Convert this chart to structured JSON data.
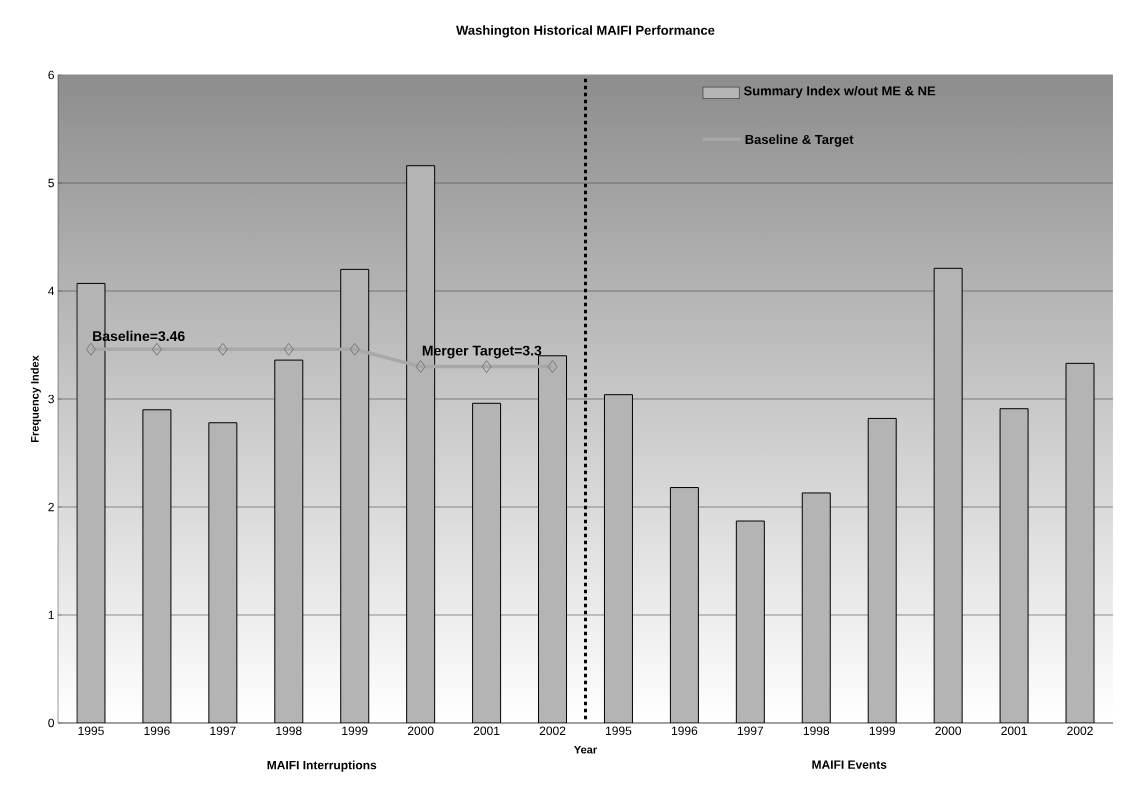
{
  "chart_data": {
    "type": "bar",
    "title": "Washington Historical MAIFI Performance",
    "xlabel": "Year",
    "ylabel": "Frequency Index",
    "categories": [
      "1995",
      "1996",
      "1997",
      "1998",
      "1999",
      "2000",
      "2001",
      "2002",
      "1995",
      "1996",
      "1997",
      "1998",
      "1999",
      "2000",
      "2001",
      "2002"
    ],
    "series": [
      {
        "name": "Summary Index w/out ME & NE",
        "color": "#b4b4b4",
        "values": [
          4.07,
          2.9,
          2.78,
          3.36,
          4.2,
          5.16,
          2.96,
          3.4,
          3.04,
          2.18,
          1.87,
          2.13,
          2.82,
          4.21,
          2.91,
          3.33
        ]
      },
      {
        "name": "Baseline & Target",
        "type": "line",
        "color": "#a8a8a8",
        "marker": "diamond",
        "line_style": "solid",
        "values": [
          3.46,
          3.46,
          3.46,
          3.46,
          3.46,
          3.3,
          3.3,
          3.3,
          null,
          null,
          null,
          null,
          null,
          null,
          null,
          null
        ]
      }
    ],
    "ylim": [
      0,
      6
    ],
    "yticks": [
      0,
      1,
      2,
      3,
      4,
      5,
      6
    ],
    "grid": "y",
    "legend": "top right",
    "annotations": [
      {
        "text": "Baseline=3.46",
        "y": 3.46
      },
      {
        "text": "Merger Target=3.3",
        "y": 3.3
      },
      "MAIFI Interruptions",
      "MAIFI Events"
    ]
  }
}
